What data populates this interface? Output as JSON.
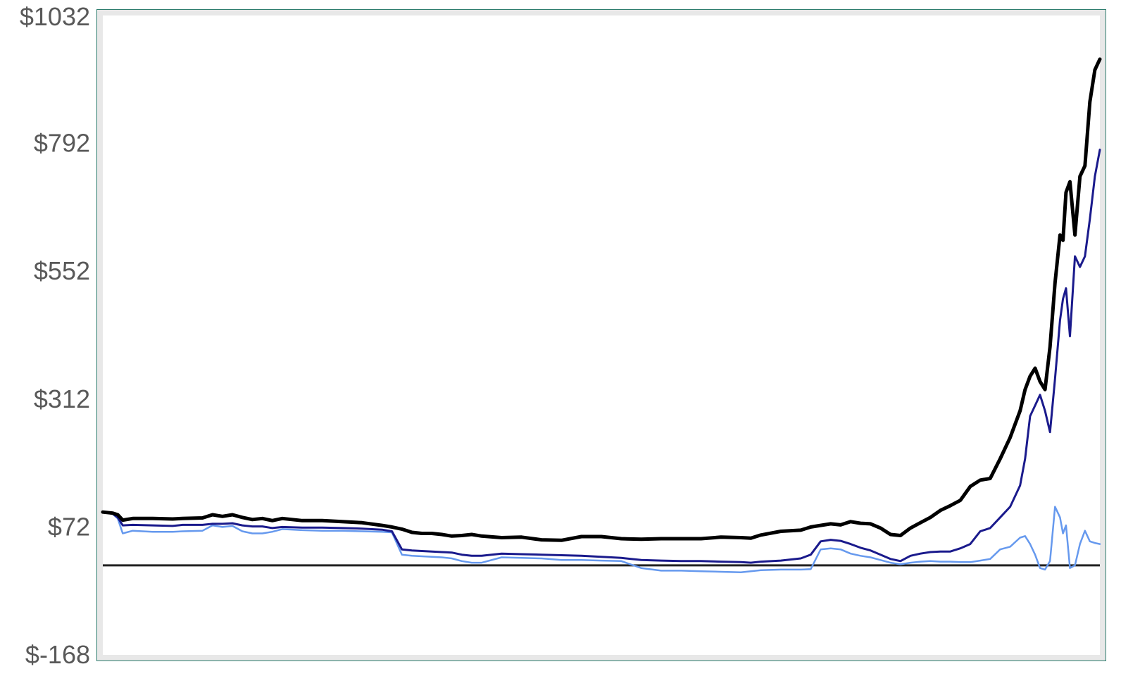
{
  "chart_data": {
    "type": "line",
    "title": "",
    "xlabel": "",
    "ylabel": "",
    "ylim": [
      -168,
      1032
    ],
    "y_ticks": [
      {
        "value": 1032,
        "label": "$1032"
      },
      {
        "value": 792,
        "label": "$792"
      },
      {
        "value": 552,
        "label": "$552"
      },
      {
        "value": 312,
        "label": "$312"
      },
      {
        "value": 72,
        "label": "$72"
      },
      {
        "value": -168,
        "label": "$-168"
      }
    ],
    "x_ticks": [],
    "grid": false,
    "legend": "none",
    "baseline_value": 0,
    "x_range": [
      0,
      100
    ],
    "series": [
      {
        "color": "#000000",
        "x": [
          0,
          1,
          1.5,
          2,
          3,
          5,
          7,
          8,
          10,
          11,
          12,
          13,
          14,
          15,
          16,
          17,
          18,
          20,
          22,
          24,
          26,
          28,
          29,
          30,
          31,
          32,
          33,
          34,
          35,
          36,
          37,
          38,
          40,
          42,
          44,
          46,
          48,
          50,
          52,
          54,
          56,
          58,
          60,
          62,
          64,
          65,
          66,
          68,
          70,
          71,
          72,
          73,
          74,
          75,
          76,
          77,
          78,
          79,
          80,
          81,
          82,
          83,
          84,
          85,
          86,
          87,
          88,
          89,
          90,
          91,
          92,
          92.5,
          93,
          93.5,
          94,
          94.5,
          95,
          95.5,
          96,
          96.3,
          96.6,
          97,
          97.5,
          98,
          98.5,
          99,
          99.5,
          100
        ],
        "values": [
          100,
          98,
          95,
          85,
          88,
          88,
          87,
          88,
          89,
          95,
          92,
          95,
          90,
          86,
          88,
          84,
          88,
          84,
          84,
          82,
          80,
          75,
          72,
          68,
          62,
          60,
          60,
          58,
          55,
          56,
          58,
          55,
          52,
          53,
          48,
          47,
          54,
          54,
          50,
          49,
          50,
          50,
          50,
          53,
          52,
          51,
          57,
          64,
          66,
          72,
          75,
          78,
          76,
          82,
          79,
          78,
          70,
          58,
          56,
          70,
          80,
          90,
          103,
          112,
          122,
          148,
          160,
          163,
          200,
          240,
          290,
          330,
          355,
          370,
          345,
          330,
          410,
          530,
          620,
          610,
          700,
          720,
          620,
          730,
          750,
          870,
          930,
          950
        ]
      },
      {
        "color": "#1a1a8c",
        "x": [
          0,
          1,
          1.5,
          2,
          3,
          5,
          7,
          8,
          10,
          11,
          12,
          13,
          14,
          15,
          16,
          17,
          18,
          20,
          22,
          24,
          26,
          28,
          29,
          30,
          31,
          32,
          33,
          34,
          35,
          36,
          37,
          38,
          40,
          42,
          44,
          46,
          48,
          50,
          52,
          54,
          56,
          58,
          60,
          62,
          64,
          65,
          66,
          68,
          70,
          71,
          72,
          73,
          74,
          75,
          76,
          77,
          78,
          79,
          80,
          81,
          82,
          83,
          84,
          85,
          86,
          87,
          88,
          89,
          90,
          91,
          92,
          92.5,
          93,
          93.5,
          94,
          94.5,
          95,
          95.5,
          96,
          96.3,
          96.6,
          97,
          97.5,
          98,
          98.5,
          99,
          99.5,
          100
        ],
        "values": [
          100,
          97,
          90,
          75,
          76,
          75,
          74,
          76,
          76,
          78,
          78,
          79,
          75,
          73,
          73,
          70,
          72,
          71,
          71,
          70,
          69,
          67,
          64,
          30,
          28,
          27,
          26,
          25,
          24,
          20,
          18,
          18,
          22,
          21,
          20,
          19,
          18,
          16,
          14,
          10,
          9,
          8,
          8,
          7,
          6,
          5,
          7,
          9,
          13,
          20,
          45,
          48,
          46,
          40,
          33,
          28,
          20,
          12,
          8,
          18,
          22,
          25,
          26,
          26,
          32,
          40,
          64,
          70,
          90,
          110,
          150,
          200,
          280,
          300,
          320,
          290,
          250,
          350,
          460,
          500,
          520,
          430,
          580,
          560,
          580,
          650,
          730,
          780
        ]
      },
      {
        "color": "#6699ee",
        "x": [
          0,
          1,
          1.5,
          2,
          3,
          5,
          7,
          8,
          10,
          11,
          12,
          13,
          14,
          15,
          16,
          17,
          18,
          20,
          22,
          24,
          26,
          28,
          29,
          30,
          31,
          32,
          33,
          34,
          35,
          36,
          37,
          38,
          40,
          42,
          44,
          46,
          48,
          50,
          52,
          54,
          56,
          58,
          60,
          62,
          64,
          65,
          66,
          68,
          70,
          71,
          72,
          73,
          74,
          75,
          76,
          77,
          78,
          79,
          80,
          81,
          82,
          83,
          84,
          85,
          86,
          87,
          88,
          89,
          90,
          91,
          92,
          92.5,
          93,
          93.5,
          94,
          94.5,
          95,
          95.5,
          96,
          96.3,
          96.6,
          97,
          97.5,
          98,
          98.5,
          99,
          99.5,
          100
        ],
        "values": [
          100,
          96,
          88,
          60,
          65,
          63,
          63,
          64,
          65,
          75,
          72,
          74,
          64,
          60,
          60,
          63,
          68,
          66,
          65,
          65,
          64,
          63,
          62,
          20,
          18,
          17,
          16,
          15,
          13,
          8,
          5,
          5,
          15,
          14,
          13,
          10,
          10,
          9,
          8,
          -5,
          -10,
          -10,
          -11,
          -12,
          -13,
          -11,
          -9,
          -8,
          -8,
          -7,
          30,
          32,
          30,
          22,
          18,
          15,
          10,
          5,
          2,
          5,
          7,
          8,
          7,
          7,
          6,
          6,
          9,
          12,
          30,
          35,
          52,
          55,
          40,
          20,
          -5,
          -8,
          8,
          110,
          90,
          60,
          75,
          -5,
          0,
          40,
          65,
          45,
          42,
          40
        ]
      }
    ]
  }
}
